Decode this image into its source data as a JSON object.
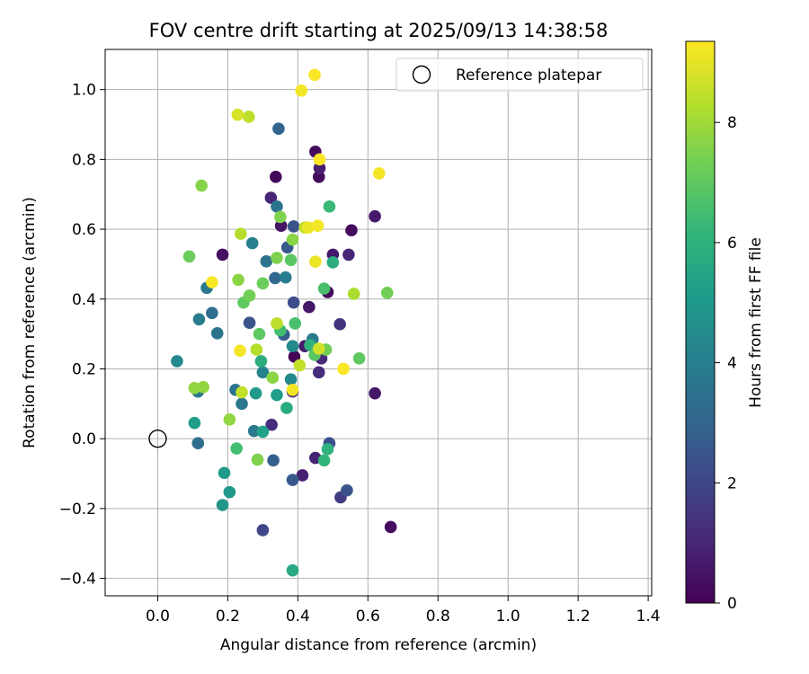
{
  "chart_data": {
    "type": "scatter",
    "title": "FOV centre drift starting at 2025/09/13 14:38:58",
    "xlabel": "Angular distance from reference (arcmin)",
    "ylabel": "Rotation from reference (arcmin)",
    "xlim": [
      -0.15,
      1.41
    ],
    "ylim": [
      -0.45,
      1.115
    ],
    "xticks": [
      0.0,
      0.2,
      0.4,
      0.6,
      0.8,
      1.0,
      1.2,
      1.4
    ],
    "xtick_labels": [
      "0.0",
      "0.2",
      "0.4",
      "0.6",
      "0.8",
      "1.0",
      "1.2",
      "1.4"
    ],
    "yticks": [
      -0.4,
      -0.2,
      0.0,
      0.2,
      0.4,
      0.6,
      0.8,
      1.0
    ],
    "ytick_labels": [
      "−0.4",
      "−0.2",
      "0.0",
      "0.2",
      "0.4",
      "0.6",
      "0.8",
      "1.0"
    ],
    "grid": true,
    "legend": {
      "position": "top-right",
      "label": "Reference platepar"
    },
    "reference_point": {
      "x": 0.0,
      "y": 0.0
    },
    "colorbar": {
      "label": "Hours from first FF file",
      "min": 0,
      "max": 9.35,
      "ticks": [
        0,
        2,
        4,
        6,
        8
      ],
      "tick_labels": [
        "0",
        "2",
        "4",
        "6",
        "8"
      ],
      "colormap": "viridis",
      "colormap_stops": [
        "#440154",
        "#482878",
        "#3e4989",
        "#31688e",
        "#26828e",
        "#1f9e89",
        "#35b779",
        "#6ece58",
        "#b5de2b",
        "#fde725"
      ]
    },
    "points": [
      {
        "x": 0.45,
        "y": 0.822,
        "h": 0.3
      },
      {
        "x": 0.337,
        "y": 0.75,
        "h": 0.2
      },
      {
        "x": 0.46,
        "y": 0.75,
        "h": 0.3
      },
      {
        "x": 0.462,
        "y": 0.775,
        "h": 0.8
      },
      {
        "x": 0.323,
        "y": 0.69,
        "h": 1.0
      },
      {
        "x": 0.352,
        "y": 0.61,
        "h": 0.5
      },
      {
        "x": 0.62,
        "y": 0.637,
        "h": 0.6
      },
      {
        "x": 0.553,
        "y": 0.597,
        "h": 0.3
      },
      {
        "x": 0.185,
        "y": 0.527,
        "h": 0.4
      },
      {
        "x": 0.5,
        "y": 0.527,
        "h": 0.6
      },
      {
        "x": 0.545,
        "y": 0.527,
        "h": 1.0
      },
      {
        "x": 0.485,
        "y": 0.42,
        "h": 0.2
      },
      {
        "x": 0.432,
        "y": 0.377,
        "h": 0.6
      },
      {
        "x": 0.52,
        "y": 0.328,
        "h": 1.4
      },
      {
        "x": 0.42,
        "y": 0.265,
        "h": 0.7
      },
      {
        "x": 0.39,
        "y": 0.235,
        "h": 0.1
      },
      {
        "x": 0.467,
        "y": 0.23,
        "h": 1.1
      },
      {
        "x": 0.46,
        "y": 0.19,
        "h": 1.2
      },
      {
        "x": 0.62,
        "y": 0.13,
        "h": 0.6
      },
      {
        "x": 0.385,
        "y": 0.135,
        "h": 1.4
      },
      {
        "x": 0.325,
        "y": 0.04,
        "h": 1.2
      },
      {
        "x": 0.49,
        "y": -0.013,
        "h": 2.2
      },
      {
        "x": 0.45,
        "y": -0.055,
        "h": 0.9
      },
      {
        "x": 0.413,
        "y": -0.105,
        "h": 0.8
      },
      {
        "x": 0.522,
        "y": -0.168,
        "h": 1.7
      },
      {
        "x": 0.54,
        "y": -0.148,
        "h": 2.4
      },
      {
        "x": 0.665,
        "y": -0.253,
        "h": 0.3
      },
      {
        "x": 0.3,
        "y": -0.262,
        "h": 2.0
      },
      {
        "x": 0.345,
        "y": 0.888,
        "h": 3.0
      },
      {
        "x": 0.388,
        "y": 0.608,
        "h": 2.4
      },
      {
        "x": 0.34,
        "y": 0.665,
        "h": 3.6
      },
      {
        "x": 0.27,
        "y": 0.56,
        "h": 4.0
      },
      {
        "x": 0.37,
        "y": 0.548,
        "h": 2.6
      },
      {
        "x": 0.31,
        "y": 0.508,
        "h": 3.5
      },
      {
        "x": 0.335,
        "y": 0.46,
        "h": 3.1
      },
      {
        "x": 0.365,
        "y": 0.462,
        "h": 4.0
      },
      {
        "x": 0.388,
        "y": 0.39,
        "h": 2.2
      },
      {
        "x": 0.14,
        "y": 0.432,
        "h": 3.8
      },
      {
        "x": 0.118,
        "y": 0.342,
        "h": 3.9
      },
      {
        "x": 0.155,
        "y": 0.36,
        "h": 3.3
      },
      {
        "x": 0.262,
        "y": 0.332,
        "h": 2.4
      },
      {
        "x": 0.36,
        "y": 0.298,
        "h": 2.7
      },
      {
        "x": 0.17,
        "y": 0.302,
        "h": 3.6
      },
      {
        "x": 0.442,
        "y": 0.285,
        "h": 3.8
      },
      {
        "x": 0.385,
        "y": 0.265,
        "h": 4.4
      },
      {
        "x": 0.055,
        "y": 0.222,
        "h": 4.4
      },
      {
        "x": 0.3,
        "y": 0.19,
        "h": 4.2
      },
      {
        "x": 0.38,
        "y": 0.17,
        "h": 4.4
      },
      {
        "x": 0.115,
        "y": 0.135,
        "h": 3.7
      },
      {
        "x": 0.222,
        "y": 0.14,
        "h": 3.6
      },
      {
        "x": 0.24,
        "y": 0.1,
        "h": 3.7
      },
      {
        "x": 0.275,
        "y": 0.022,
        "h": 3.8
      },
      {
        "x": 0.115,
        "y": -0.013,
        "h": 3.3
      },
      {
        "x": 0.33,
        "y": -0.062,
        "h": 2.8
      },
      {
        "x": 0.385,
        "y": -0.118,
        "h": 2.6
      },
      {
        "x": 0.105,
        "y": 0.045,
        "h": 5.2
      },
      {
        "x": 0.35,
        "y": 0.31,
        "h": 6.5
      },
      {
        "x": 0.295,
        "y": 0.222,
        "h": 5.8
      },
      {
        "x": 0.28,
        "y": 0.13,
        "h": 5.0
      },
      {
        "x": 0.34,
        "y": 0.125,
        "h": 5.2
      },
      {
        "x": 0.368,
        "y": 0.088,
        "h": 5.7
      },
      {
        "x": 0.3,
        "y": 0.02,
        "h": 5.3
      },
      {
        "x": 0.225,
        "y": -0.028,
        "h": 6.5
      },
      {
        "x": 0.485,
        "y": -0.03,
        "h": 6.0
      },
      {
        "x": 0.475,
        "y": -0.062,
        "h": 6.1
      },
      {
        "x": 0.19,
        "y": -0.098,
        "h": 5.1
      },
      {
        "x": 0.205,
        "y": -0.153,
        "h": 5.0
      },
      {
        "x": 0.185,
        "y": -0.19,
        "h": 4.9
      },
      {
        "x": 0.385,
        "y": -0.377,
        "h": 5.6
      },
      {
        "x": 0.49,
        "y": 0.665,
        "h": 6.3
      },
      {
        "x": 0.42,
        "y": 0.605,
        "h": 8.5
      },
      {
        "x": 0.35,
        "y": 0.635,
        "h": 7.5
      },
      {
        "x": 0.385,
        "y": 0.57,
        "h": 7.7
      },
      {
        "x": 0.38,
        "y": 0.512,
        "h": 6.9
      },
      {
        "x": 0.34,
        "y": 0.518,
        "h": 7.5
      },
      {
        "x": 0.23,
        "y": 0.455,
        "h": 7.7
      },
      {
        "x": 0.3,
        "y": 0.445,
        "h": 7.2
      },
      {
        "x": 0.475,
        "y": 0.43,
        "h": 6.6
      },
      {
        "x": 0.245,
        "y": 0.39,
        "h": 7.0
      },
      {
        "x": 0.262,
        "y": 0.41,
        "h": 7.3
      },
      {
        "x": 0.5,
        "y": 0.505,
        "h": 5.8
      },
      {
        "x": 0.392,
        "y": 0.33,
        "h": 6.6
      },
      {
        "x": 0.435,
        "y": 0.268,
        "h": 6.0
      },
      {
        "x": 0.448,
        "y": 0.24,
        "h": 6.9
      },
      {
        "x": 0.48,
        "y": 0.255,
        "h": 7.3
      },
      {
        "x": 0.575,
        "y": 0.23,
        "h": 7.0
      },
      {
        "x": 0.09,
        "y": 0.522,
        "h": 7.2
      },
      {
        "x": 0.655,
        "y": 0.418,
        "h": 7.3
      },
      {
        "x": 0.125,
        "y": 0.725,
        "h": 7.6
      },
      {
        "x": 0.13,
        "y": 0.148,
        "h": 7.8
      },
      {
        "x": 0.105,
        "y": 0.145,
        "h": 7.8
      },
      {
        "x": 0.328,
        "y": 0.175,
        "h": 7.7
      },
      {
        "x": 0.29,
        "y": 0.3,
        "h": 7.0
      },
      {
        "x": 0.205,
        "y": 0.055,
        "h": 7.8
      },
      {
        "x": 0.285,
        "y": -0.06,
        "h": 7.5
      },
      {
        "x": 0.56,
        "y": 0.415,
        "h": 8.2
      },
      {
        "x": 0.34,
        "y": 0.33,
        "h": 8.4
      },
      {
        "x": 0.282,
        "y": 0.255,
        "h": 8.3
      },
      {
        "x": 0.405,
        "y": 0.21,
        "h": 8.5
      },
      {
        "x": 0.24,
        "y": 0.133,
        "h": 8.5
      },
      {
        "x": 0.237,
        "y": 0.587,
        "h": 8.3
      },
      {
        "x": 0.26,
        "y": 0.922,
        "h": 8.4
      },
      {
        "x": 0.46,
        "y": 0.258,
        "h": 8.7
      },
      {
        "x": 0.228,
        "y": 0.928,
        "h": 8.8
      },
      {
        "x": 0.41,
        "y": 0.997,
        "h": 9.2
      },
      {
        "x": 0.448,
        "y": 1.042,
        "h": 9.3
      },
      {
        "x": 0.462,
        "y": 0.8,
        "h": 9.3
      },
      {
        "x": 0.632,
        "y": 0.76,
        "h": 9.2
      },
      {
        "x": 0.43,
        "y": 0.605,
        "h": 9.1
      },
      {
        "x": 0.457,
        "y": 0.61,
        "h": 9.2
      },
      {
        "x": 0.45,
        "y": 0.507,
        "h": 9.1
      },
      {
        "x": 0.155,
        "y": 0.448,
        "h": 9.3
      },
      {
        "x": 0.235,
        "y": 0.252,
        "h": 9.2
      },
      {
        "x": 0.53,
        "y": 0.2,
        "h": 9.3
      },
      {
        "x": 0.385,
        "y": 0.14,
        "h": 9.2
      }
    ]
  }
}
